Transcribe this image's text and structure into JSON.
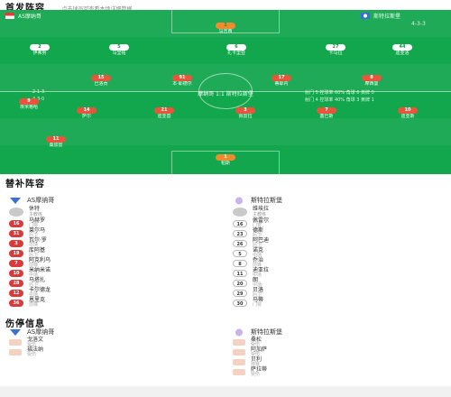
{
  "lineup_title": "首发阵容",
  "lineup_note": "点击球员可查看本场详细数据",
  "home_team": {
    "name": "AS摩纳哥",
    "formation": "4-2-3-1"
  },
  "away_team": {
    "name": "斯特拉斯堡",
    "formation": "4-3-3"
  },
  "center_score": "摩纳哥 1:1 斯特拉斯堡",
  "stats_left": [
    "2-1-3",
    "4-3-0"
  ],
  "stats_right": [
    "射门 5  控球率 60%  角球 6  黄牌 0",
    "射门 4  控球率 40%  角球 3  黄牌 1"
  ],
  "pitch_players": [
    {
      "num": "1",
      "name": "马吉西",
      "side": "home",
      "gk": true
    },
    {
      "num": "2",
      "name": "伊弗努",
      "side": "home"
    },
    {
      "num": "5",
      "name": "马里帕",
      "side": "home"
    },
    {
      "num": "6",
      "name": "扎卡里亚",
      "side": "home"
    },
    {
      "num": "27",
      "name": "卡马拉",
      "side": "home"
    },
    {
      "num": "44",
      "name": "迪亚洛",
      "side": "home"
    },
    {
      "num": "15",
      "name": "巴洛贡",
      "side": "away"
    },
    {
      "num": "91",
      "name": "本·耶德尔",
      "side": "away"
    },
    {
      "num": "17",
      "name": "蒂耶内",
      "side": "away"
    },
    {
      "num": "8",
      "name": "摩西曼",
      "side": "away"
    },
    {
      "num": "9",
      "name": "埃米格哈",
      "side": "away"
    },
    {
      "num": "14",
      "name": "萨尔",
      "side": "away"
    },
    {
      "num": "21",
      "name": "迪亚基",
      "side": "away"
    },
    {
      "num": "3",
      "name": "佩雷拉",
      "side": "away"
    },
    {
      "num": "7",
      "name": "塞巴斯",
      "side": "away"
    },
    {
      "num": "10",
      "name": "迪亚斯",
      "side": "away"
    },
    {
      "num": "11",
      "name": "桑加雷",
      "side": "away"
    },
    {
      "num": "1",
      "name": "帕斯",
      "side": "away",
      "gk": true
    }
  ],
  "subs_title": "替补阵容",
  "subs_left": {
    "club": "AS摩纳哥",
    "coach_name": "休特",
    "coach_role": "主教练",
    "players": [
      {
        "num": "16",
        "name": "马赫罗",
        "pos": "门将",
        "in": ""
      },
      {
        "num": "31",
        "name": "莱尔马",
        "pos": "后卫",
        "in": ""
      },
      {
        "num": "3",
        "name": "瓦尔·罗",
        "pos": "中场",
        "in": ""
      },
      {
        "num": "19",
        "name": "库阿基",
        "pos": "后卫",
        "in": ""
      },
      {
        "num": "7",
        "name": "阿克利乌",
        "pos": "前锋",
        "in": ""
      },
      {
        "num": "10",
        "name": "米纳米诺",
        "pos": "中场",
        "in": ""
      },
      {
        "num": "28",
        "name": "马塔扎",
        "pos": "后卫",
        "in": ""
      },
      {
        "num": "12",
        "name": "卡尔德龙",
        "pos": "中场",
        "in": ""
      },
      {
        "num": "36",
        "name": "恩里克",
        "pos": "前锋",
        "in": ""
      }
    ]
  },
  "subs_right": {
    "club": "斯特拉斯堡",
    "coach_name": "维埃拉",
    "coach_role": "主教练",
    "players": [
      {
        "num": "16",
        "name": "佩雷尔",
        "pos": "门将",
        "in": ""
      },
      {
        "num": "23",
        "name": "德斯",
        "pos": "后卫",
        "in": ""
      },
      {
        "num": "26",
        "name": "阿巴迪",
        "pos": "后卫",
        "in": ""
      },
      {
        "num": "5",
        "name": "诺克",
        "pos": "中场",
        "in": ""
      },
      {
        "num": "8",
        "name": "乔治",
        "pos": "前锋",
        "in": ""
      },
      {
        "num": "11",
        "name": "迪亚拉",
        "pos": "中场",
        "in": ""
      },
      {
        "num": "20",
        "name": "朗",
        "pos": "中场",
        "in": ""
      },
      {
        "num": "29",
        "name": "贝洛",
        "pos": "后卫",
        "in": ""
      },
      {
        "num": "30",
        "name": "马蒂",
        "pos": "门将",
        "in": ""
      }
    ]
  },
  "injury_title": "伤停信息",
  "injury_left": {
    "club": "AS摩纳哥",
    "items": [
      {
        "name": "戈洛文",
        "reason": "受伤"
      },
      {
        "name": "福法纳",
        "reason": "受伤"
      }
    ]
  },
  "injury_right": {
    "club": "斯特拉斯堡",
    "items": [
      {
        "name": "桑松",
        "reason": "受伤"
      },
      {
        "name": "阿加萨",
        "reason": "受伤"
      },
      {
        "name": "贝利",
        "reason": "停赛"
      },
      {
        "name": "萨拉蒂",
        "reason": "受伤"
      }
    ]
  },
  "colors": {
    "pitch": "#12a64d",
    "away_badge": "#e9553a",
    "home_badge": "#ffffff",
    "sub_num": "#d93a3a"
  }
}
